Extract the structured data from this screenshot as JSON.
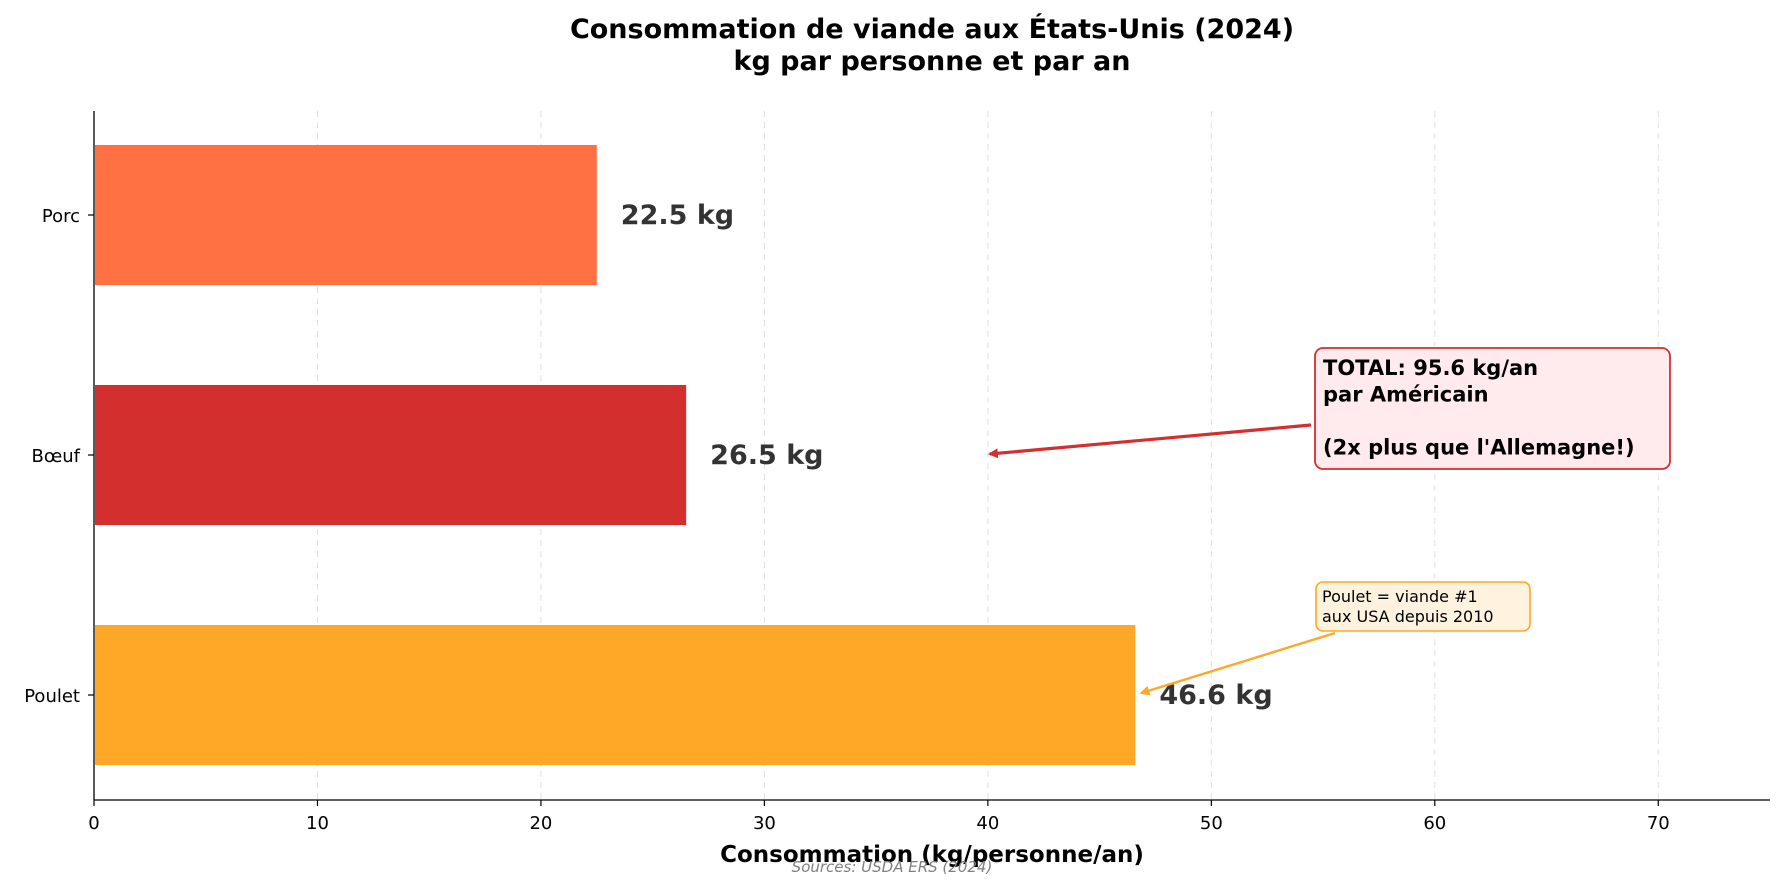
{
  "chart_data": {
    "type": "bar",
    "orientation": "horizontal",
    "title": "Consommation de viande aux États-Unis (2024)",
    "subtitle": "kg par personne et par an",
    "xlabel": "Consommation (kg/personne/an)",
    "ylabel": "",
    "xlim": [
      0,
      75
    ],
    "xticks": [
      0,
      10,
      20,
      30,
      40,
      50,
      60,
      70
    ],
    "grid": "x, dashed",
    "categories": [
      "Porc",
      "Bœuf",
      "Poulet"
    ],
    "values": [
      22.5,
      26.5,
      46.6
    ],
    "colors": [
      "#FF7043",
      "#D32F2F",
      "#FFA726"
    ],
    "value_labels": [
      "22.5 kg",
      "26.5 kg",
      "46.6 kg"
    ],
    "annotations": [
      {
        "lines": [
          "TOTAL: 95.6 kg/an",
          "par Américain",
          "",
          "(2x plus que l'Allemagne!)"
        ],
        "target": {
          "x": 40,
          "category": "Bœuf"
        },
        "color": "#D32F2F",
        "background": "#FFEBEE"
      },
      {
        "lines": [
          "Poulet = viande #1",
          "aux USA depuis 2010"
        ],
        "target": {
          "x": 46.6,
          "category": "Poulet"
        },
        "color": "#FFA726",
        "background": "#FFF3E0"
      }
    ],
    "source": "Sources: USDA ERS (2024)"
  }
}
